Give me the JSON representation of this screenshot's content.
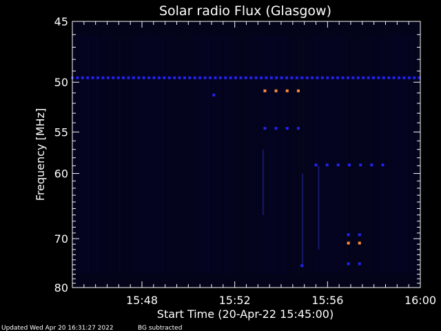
{
  "chart_data": {
    "type": "heatmap",
    "title": "Solar radio Flux (Glasgow)",
    "xlabel": "Start Time (20-Apr-22 15:45:00)",
    "ylabel": "Frequency [MHz]",
    "x_unit": "minutes after 15:45:00",
    "xlim": [
      0,
      15
    ],
    "ylim": [
      45,
      80
    ],
    "x_ticks": [
      {
        "value": 3,
        "label": "15:48"
      },
      {
        "value": 7,
        "label": "15:52"
      },
      {
        "value": 11,
        "label": "15:56"
      },
      {
        "value": 15,
        "label": "16:00"
      }
    ],
    "y_ticks": [
      {
        "value": 45,
        "label": "45"
      },
      {
        "value": 50,
        "label": "50"
      },
      {
        "value": 55,
        "label": "55"
      },
      {
        "value": 60,
        "label": "60"
      },
      {
        "value": 70,
        "label": "70"
      },
      {
        "value": 80,
        "label": "80"
      }
    ],
    "features": [
      {
        "kind": "dashed-line",
        "freq": 49.6,
        "x_start": 0,
        "x_end": 15,
        "intensity": "low"
      },
      {
        "kind": "dashed-line",
        "freq": 50.8,
        "x_start": 8.3,
        "x_end": 9.9,
        "intensity": "high"
      },
      {
        "kind": "dashed-line",
        "freq": 54.6,
        "x_start": 8.3,
        "x_end": 9.9,
        "intensity": "low"
      },
      {
        "kind": "dashed-line",
        "freq": 58.9,
        "x_start": 10.5,
        "x_end": 13.5,
        "intensity": "low"
      },
      {
        "kind": "dashed-line",
        "freq": 69.3,
        "x_start": 11.9,
        "x_end": 12.6,
        "intensity": "low"
      },
      {
        "kind": "dashed-line",
        "freq": 70.8,
        "x_start": 11.9,
        "x_end": 12.6,
        "intensity": "high"
      },
      {
        "kind": "dashed-line",
        "freq": 74.8,
        "x_start": 11.9,
        "x_end": 12.6,
        "intensity": "low"
      },
      {
        "kind": "spot",
        "freq": 51.2,
        "x": 6.1,
        "intensity": "low"
      },
      {
        "kind": "spot",
        "freq": 75.2,
        "x": 9.9,
        "intensity": "low"
      }
    ]
  },
  "footer": {
    "updated": "Updated Wed Apr 20 16:31:27 2022",
    "note": "BG subtracted"
  },
  "colors": {
    "background": "#000000",
    "plot_bg": "#03031a",
    "low": "#2222ee",
    "high": "#ff8c3c",
    "axis": "#ffffff"
  }
}
